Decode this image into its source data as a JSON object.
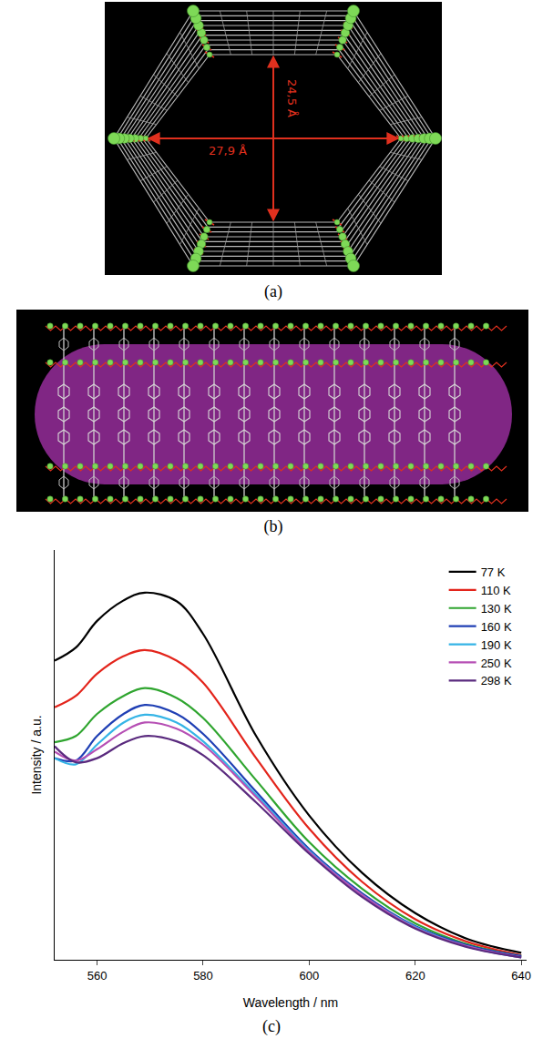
{
  "panel_labels": [
    "(a)",
    "(b)",
    "(c)"
  ],
  "diagram_a": {
    "dimensions": [
      {
        "direction": "vertical",
        "label": "24,5 Å"
      },
      {
        "direction": "horizontal",
        "label": "27,9 Å"
      }
    ]
  },
  "chart_data": {
    "type": "line",
    "x_label": "Wavelength / nm",
    "y_label": "Intensity / a.u.",
    "x": [
      552,
      556,
      560,
      565,
      569,
      575,
      580,
      590,
      600,
      610,
      620,
      630,
      640
    ],
    "xlim": [
      552,
      641
    ],
    "xticks": [
      560,
      580,
      600,
      620,
      640
    ],
    "ylim": [
      0,
      100
    ],
    "yticks": [],
    "tick_labels": "x",
    "grid": false,
    "legend": "top-right",
    "series": [
      {
        "name": "77 K",
        "color": "#000000",
        "values": [
          73.0,
          76.2,
          82.7,
          87.7,
          89.6,
          87.5,
          79.5,
          54.6,
          35.2,
          21.2,
          11.4,
          5.0,
          1.7
        ]
      },
      {
        "name": "110 K",
        "color": "#e3241b",
        "values": [
          61.6,
          64.4,
          69.8,
          74.1,
          75.6,
          73.0,
          67.6,
          49.2,
          32.0,
          19.0,
          9.9,
          4.3,
          1.1
        ]
      },
      {
        "name": "130 K",
        "color": "#2fa52f",
        "values": [
          53.1,
          54.6,
          60.0,
          64.4,
          66.3,
          63.9,
          59.0,
          43.8,
          28.7,
          17.3,
          8.9,
          3.7,
          0.9
        ]
      },
      {
        "name": "160 K",
        "color": "#1f3fb4",
        "values": [
          49.2,
          48.6,
          54.6,
          60.0,
          62.2,
          60.0,
          55.1,
          41.0,
          27.0,
          16.2,
          8.2,
          3.5,
          0.9
        ]
      },
      {
        "name": "190 K",
        "color": "#35b4e6",
        "values": [
          49.2,
          47.7,
          52.5,
          57.9,
          59.8,
          57.9,
          53.3,
          40.2,
          26.6,
          15.8,
          8.0,
          3.2,
          0.6
        ]
      },
      {
        "name": "250 K",
        "color": "#b64fb4",
        "values": [
          50.8,
          48.6,
          51.4,
          55.7,
          57.9,
          56.4,
          52.5,
          39.7,
          26.3,
          15.8,
          7.8,
          3.2,
          0.6
        ]
      },
      {
        "name": "298 K",
        "color": "#5a2a7e",
        "values": [
          52.1,
          48.2,
          49.2,
          52.9,
          54.6,
          53.3,
          49.9,
          38.4,
          25.9,
          15.3,
          7.6,
          3.0,
          0.6
        ]
      }
    ]
  }
}
